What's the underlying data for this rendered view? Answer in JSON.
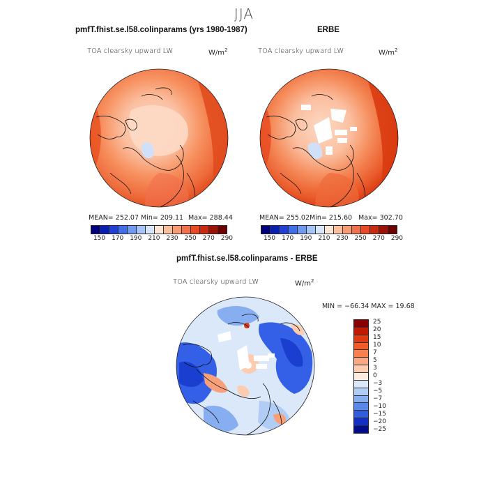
{
  "page": {
    "main_title": "JJA"
  },
  "panels": [
    {
      "id": "model",
      "header": "pmfT.fhist.se.l58.colinparams (yrs 1980-1987)",
      "title": "TOA clearsky upward LW",
      "units": "W/m",
      "units_sup": "2",
      "stats": {
        "mean": "MEAN= 252.07",
        "min": "Min= 209.11",
        "max": "Max= 288.44"
      }
    },
    {
      "id": "obs",
      "header": "ERBE",
      "title": "TOA clearsky upward LW",
      "units": "W/m",
      "units_sup": "2",
      "stats": {
        "mean": "MEAN= 255.02",
        "min": "Min= 215.60",
        "max": "Max= 302.70"
      }
    },
    {
      "id": "diff",
      "header": "pmfT.fhist.se.l58.colinparams - ERBE",
      "title": "TOA clearsky upward LW",
      "units": "W/m",
      "units_sup": "2",
      "stats": {
        "minmax": "MIN = −66.34 MAX =  19.68"
      }
    }
  ],
  "abs_colorbar": {
    "labels": [
      "150",
      "170",
      "190",
      "210",
      "230",
      "250",
      "270",
      "290"
    ],
    "colors": [
      "#00007f",
      "#0a1fb0",
      "#1f3fd8",
      "#3f6ee8",
      "#6f98f0",
      "#a6c4f5",
      "#d8e6fb",
      "#fde6d6",
      "#fbbf9f",
      "#f79a76",
      "#f2704c",
      "#e84a26",
      "#cc2a10",
      "#9c1206",
      "#6f0000"
    ]
  },
  "diff_colorbar": {
    "labels": [
      "25",
      "20",
      "15",
      "10",
      "7",
      "5",
      "3",
      "0",
      "−3",
      "−5",
      "−7",
      "−10",
      "−15",
      "−20",
      "−25"
    ],
    "colors": [
      "#8a0000",
      "#c01a00",
      "#e03a10",
      "#f25a28",
      "#f7804e",
      "#fba882",
      "#fdcbb0",
      "#fdebe0",
      "#dbe8f9",
      "#b2cdf5",
      "#86aef0",
      "#5a88ea",
      "#2f5fe0",
      "#1230c4",
      "#020c8c"
    ]
  },
  "map_colors": {
    "abs_low": "#fdd9c4",
    "abs_mid": "#f7905f",
    "abs_high": "#e8501e",
    "abs_max": "#d8380e",
    "missing": "#ffffff",
    "diff_neg": "#3360e6",
    "diff_negdeep": "#1a3fd0",
    "diff_light": "#cfe0f8",
    "diff_pos": "#f8a07a",
    "coast": "#111111"
  }
}
